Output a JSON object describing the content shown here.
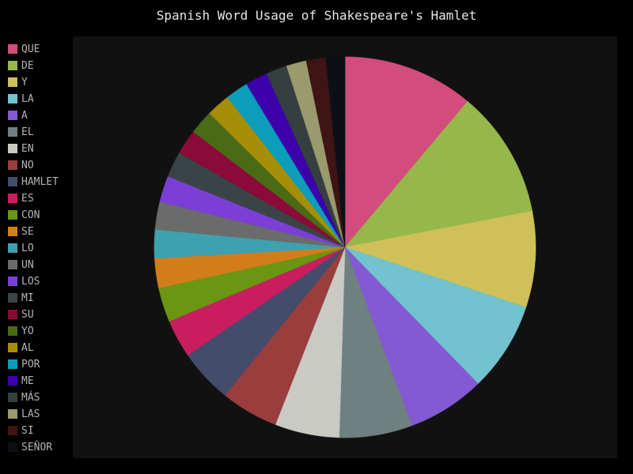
{
  "chart_data": {
    "type": "pie",
    "title": "Spanish Word Usage of Shakespeare's Hamlet",
    "legend_position": "left",
    "slices": [
      {
        "label": "QUE",
        "value": 1179,
        "color": "#d34c7e"
      },
      {
        "label": "DE",
        "value": 1150,
        "color": "#96b84a"
      },
      {
        "label": "Y",
        "value": 866,
        "color": "#cfc05a"
      },
      {
        "label": "LA",
        "value": 805,
        "color": "#72c2cf"
      },
      {
        "label": "A",
        "value": 699,
        "color": "#835ad4"
      },
      {
        "label": "EL",
        "value": 656,
        "color": "#6f8080"
      },
      {
        "label": "EN",
        "value": 580,
        "color": "#c9cac4"
      },
      {
        "label": "NO",
        "value": 519,
        "color": "#9a3d3d"
      },
      {
        "label": "HAMLET",
        "value": 484,
        "color": "#444c6c"
      },
      {
        "label": "ES",
        "value": 344,
        "color": "#c81e5e"
      },
      {
        "label": "CON",
        "value": 310,
        "color": "#6a9612"
      },
      {
        "label": "SE",
        "value": 266,
        "color": "#d37d1a"
      },
      {
        "label": "LO",
        "value": 257,
        "color": "#3fa0b0"
      },
      {
        "label": "UN",
        "value": 249,
        "color": "#6b6b6b"
      },
      {
        "label": "LOS",
        "value": 236,
        "color": "#7b3fd6"
      },
      {
        "label": "MI",
        "value": 232,
        "color": "#3a4446"
      },
      {
        "label": "SU",
        "value": 224,
        "color": "#8a0a3a"
      },
      {
        "label": "YO",
        "value": 218,
        "color": "#4a6a16"
      },
      {
        "label": "AL",
        "value": 212,
        "color": "#a58f09"
      },
      {
        "label": "POR",
        "value": 206,
        "color": "#0c9dbc"
      },
      {
        "label": "ME",
        "value": 200,
        "color": "#3d00aa"
      },
      {
        "label": "MÁS",
        "value": 190,
        "color": "#353f40"
      },
      {
        "label": "LAS",
        "value": 180,
        "color": "#9a9a6c"
      },
      {
        "label": "SI",
        "value": 175,
        "color": "#3e1414"
      },
      {
        "label": "SEÑOR",
        "value": 170,
        "color": "#0c1016"
      }
    ]
  }
}
